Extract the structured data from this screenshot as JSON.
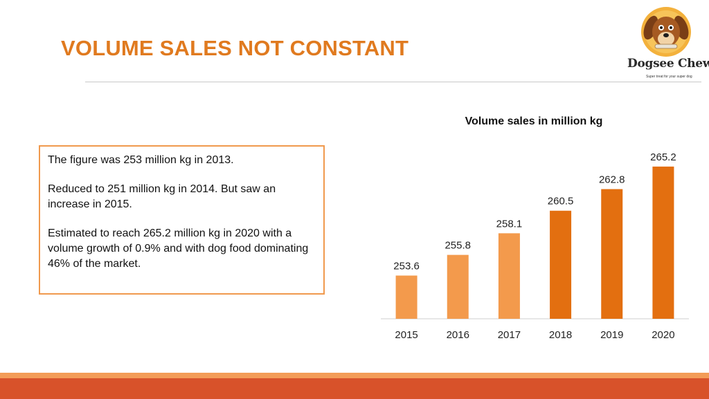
{
  "slide": {
    "title": "VOLUME SALES NOT CONSTANT"
  },
  "logo": {
    "brand": "Dogsee Chew",
    "tagline": "Super treat for your super dog",
    "icon": "dog-face-icon"
  },
  "textbox": {
    "paragraphs": [
      "The figure was 253 million kg in 2013.",
      "Reduced to 251 million kg in 2014. But saw an increase in 2015.",
      "Estimated to reach 265.2 million kg in 2020 with a volume growth of 0.9% and with dog food dominating 46% of the market."
    ]
  },
  "colors": {
    "accent": "#e07a1f",
    "bar_light": "#f39a4c",
    "bar_dark": "#e36f10",
    "footer_light": "#f39c57",
    "footer_dark": "#d8522a"
  },
  "chart_data": {
    "type": "bar",
    "title": "Volume sales in million kg",
    "categories": [
      "2015",
      "2016",
      "2017",
      "2018",
      "2019",
      "2020"
    ],
    "values": [
      253.6,
      255.8,
      258.1,
      260.5,
      262.8,
      265.2
    ],
    "value_labels": [
      "253.6",
      "255.8",
      "258.1",
      "260.5",
      "262.8",
      "265.2"
    ],
    "bar_colors": [
      "#f39a4c",
      "#f39a4c",
      "#f39a4c",
      "#e36f10",
      "#e36f10",
      "#e36f10"
    ],
    "xlabel": "",
    "ylabel": "",
    "ylim": [
      249,
      266
    ],
    "grid": false,
    "legend": "none"
  }
}
